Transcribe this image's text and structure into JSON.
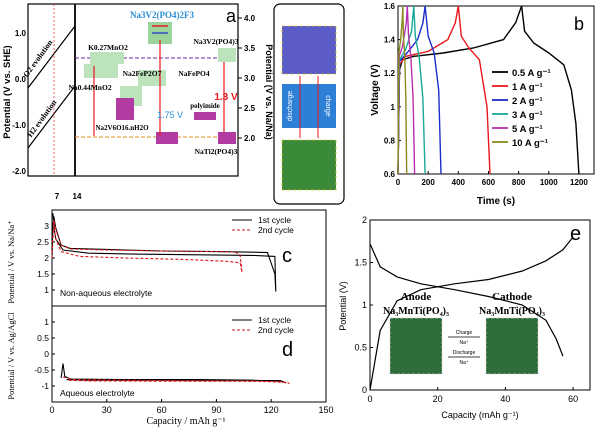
{
  "chart_data": [
    {
      "panel": "a",
      "type": "other",
      "left_axis": {
        "label": "Potential (V vs. SHE)",
        "ticks": [
          "1.0",
          "0.0",
          "-1.0",
          "-2.0"
        ]
      },
      "right_axis": {
        "label": "Potential (V vs. Na/Na)",
        "ticks": [
          "4.0",
          "3.5",
          "3.0",
          "2.5",
          "2.0"
        ]
      },
      "x_ticks": [
        "7",
        "14"
      ],
      "regions": [
        "O2 evolution",
        "H2 evolution"
      ],
      "materials": [
        {
          "label": "Na3V2(PO4)2F3",
          "color": "#9bd49b"
        },
        {
          "label": "K0.27MnO2",
          "color": "#bde3bd"
        },
        {
          "label": "Na3V2(PO4)3",
          "color": "#bde3bd"
        },
        {
          "label": "Na0.44MnO2",
          "color": "#bde3bd"
        },
        {
          "label": "Na2FeP2O7",
          "color": "#bde3bd"
        },
        {
          "label": "NaFePO4",
          "color": "#bde3bd"
        },
        {
          "label": "Na2V6O16.nH2O",
          "color": "#b23aa0"
        },
        {
          "label": "polyimide",
          "color": "#b23aa0"
        },
        {
          "label": "NaTi2(PO4)3",
          "color": "#b23aa0"
        }
      ],
      "voltage_labels": [
        "1.75 V",
        "1.3 V"
      ],
      "inset_labels": [
        "discharge",
        "charge"
      ]
    },
    {
      "panel": "b",
      "type": "line",
      "xlabel": "Time (s)",
      "ylabel": "Voltage (V)",
      "xlim": [
        0,
        1300
      ],
      "ylim": [
        0.6,
        1.6
      ],
      "xticks": [
        0,
        200,
        400,
        600,
        800,
        1000,
        1200
      ],
      "yticks": [
        0.6,
        0.8,
        1.0,
        1.2,
        1.4,
        1.6
      ],
      "series": [
        {
          "name": "0.5 A g⁻¹",
          "color": "#000000",
          "x": [
            0,
            10,
            30,
            100,
            300,
            500,
            700,
            780,
            820,
            840,
            900,
            1000,
            1100,
            1150,
            1180,
            1200
          ],
          "y": [
            0.6,
            1.22,
            1.28,
            1.3,
            1.32,
            1.35,
            1.4,
            1.5,
            1.6,
            1.45,
            1.38,
            1.32,
            1.25,
            1.1,
            0.9,
            0.6
          ]
        },
        {
          "name": "1 A g⁻¹",
          "color": "#e8171d",
          "x": [
            0,
            10,
            50,
            200,
            330,
            380,
            400,
            420,
            470,
            540,
            590,
            610
          ],
          "y": [
            0.6,
            1.25,
            1.3,
            1.33,
            1.4,
            1.5,
            1.6,
            1.42,
            1.35,
            1.28,
            1.0,
            0.6
          ]
        },
        {
          "name": "2 A g⁻¹",
          "color": "#1b2ec9",
          "x": [
            0,
            10,
            60,
            130,
            165,
            180,
            200,
            240,
            270,
            285
          ],
          "y": [
            0.6,
            1.27,
            1.32,
            1.4,
            1.5,
            1.6,
            1.42,
            1.32,
            1.1,
            0.6
          ]
        },
        {
          "name": "3 A g⁻¹",
          "color": "#17a89a",
          "x": [
            0,
            10,
            50,
            90,
            105,
            115,
            140,
            165,
            180
          ],
          "y": [
            0.6,
            1.28,
            1.34,
            1.45,
            1.6,
            1.42,
            1.3,
            1.05,
            0.6
          ]
        },
        {
          "name": "5 A g⁻¹",
          "color": "#b82fb0",
          "x": [
            0,
            8,
            30,
            55,
            62,
            70,
            85,
            100,
            110
          ],
          "y": [
            0.6,
            1.3,
            1.36,
            1.5,
            1.6,
            1.42,
            1.3,
            1.05,
            0.6
          ]
        },
        {
          "name": "10 A g⁻¹",
          "color": "#8a8a1e",
          "x": [
            0,
            5,
            18,
            28,
            32,
            36,
            45,
            52,
            58
          ],
          "y": [
            0.6,
            1.32,
            1.4,
            1.52,
            1.6,
            1.42,
            1.3,
            1.05,
            0.6
          ]
        }
      ]
    },
    {
      "panel": "c",
      "type": "line",
      "xlabel": "Capacity / mAh g⁻¹",
      "ylabel": "Potential / V vs. Na/Na⁺",
      "xlim": [
        0,
        150
      ],
      "ylim": [
        0.5,
        3.5
      ],
      "yticks": [
        1.0,
        1.5,
        2.0,
        2.5,
        3.0
      ],
      "annotation": "Non-aqueous electrolyte",
      "series": [
        {
          "name": "1st cycle",
          "color": "#000000",
          "dash": false,
          "x": [
            0,
            0.5,
            1,
            2,
            5,
            10,
            30,
            60,
            90,
            110,
            118,
            122,
            122.5,
            122,
            110,
            80,
            50,
            20,
            6,
            2,
            1,
            0.5
          ],
          "y": [
            2.0,
            3.0,
            3.3,
            2.95,
            2.4,
            2.3,
            2.27,
            2.22,
            2.2,
            2.18,
            2.17,
            1.5,
            0.95,
            2.05,
            2.08,
            2.1,
            2.12,
            2.15,
            2.25,
            2.6,
            3.0,
            3.4
          ]
        },
        {
          "name": "2nd cycle",
          "color": "#d7191c",
          "dash": true,
          "x": [
            0,
            1,
            2,
            5,
            10,
            30,
            60,
            90,
            100,
            103,
            104,
            103,
            95,
            70,
            40,
            15,
            5,
            2,
            1
          ],
          "y": [
            2.0,
            3.2,
            2.9,
            2.4,
            2.28,
            2.25,
            2.22,
            2.2,
            2.19,
            2.1,
            1.55,
            1.85,
            1.9,
            1.96,
            2.0,
            2.05,
            2.2,
            2.6,
            3.1
          ]
        }
      ]
    },
    {
      "panel": "d",
      "type": "line",
      "xlabel": "Capacity / mAh g⁻¹",
      "ylabel": "Potential / V vs. Ag/AgCl",
      "xlim": [
        0,
        150
      ],
      "ylim": [
        -1.5,
        1.5
      ],
      "xticks": [
        0,
        30,
        60,
        90,
        120,
        150
      ],
      "yticks": [
        -1.0,
        -0.5,
        0.0,
        0.5,
        1.0
      ],
      "annotation": "Aqueous electrolyte",
      "series": [
        {
          "name": "1st cycle",
          "color": "#000000",
          "dash": false,
          "x": [
            5,
            6,
            7,
            10,
            40,
            80,
            110,
            125,
            128,
            125,
            100,
            60,
            20,
            8
          ],
          "y": [
            -0.75,
            -0.3,
            -0.7,
            -0.78,
            -0.8,
            -0.8,
            -0.82,
            -0.85,
            -0.9,
            -0.83,
            -0.82,
            -0.82,
            -0.82,
            -0.8
          ]
        },
        {
          "name": "2nd cycle",
          "color": "#d7191c",
          "dash": true,
          "x": [
            6,
            8,
            12,
            40,
            80,
            110,
            126,
            130,
            126,
            100,
            60,
            20,
            8
          ],
          "y": [
            -0.72,
            -0.75,
            -0.8,
            -0.82,
            -0.84,
            -0.85,
            -0.88,
            -0.92,
            -0.86,
            -0.85,
            -0.85,
            -0.84,
            -0.82
          ]
        }
      ]
    },
    {
      "panel": "e",
      "type": "line",
      "xlabel": "Capacity (mAh g⁻¹)",
      "ylabel": "Potential (V)",
      "xlim": [
        0,
        65
      ],
      "ylim": [
        0,
        2.0
      ],
      "xticks": [
        0,
        20,
        40,
        60
      ],
      "yticks": [
        0.0,
        0.5,
        1.0,
        1.5,
        2.0
      ],
      "series": [
        {
          "name": "",
          "color": "#000000",
          "x": [
            0,
            3,
            8,
            15,
            25,
            35,
            45,
            52,
            57,
            60
          ],
          "y": [
            0.0,
            0.7,
            1.05,
            1.18,
            1.25,
            1.3,
            1.4,
            1.52,
            1.65,
            1.8
          ]
        },
        {
          "name": "",
          "color": "#000000",
          "x": [
            0,
            3,
            8,
            15,
            25,
            35,
            45,
            52,
            55,
            57
          ],
          "y": [
            1.72,
            1.45,
            1.33,
            1.25,
            1.18,
            1.1,
            1.0,
            0.82,
            0.6,
            0.4
          ]
        }
      ],
      "annotations": {
        "anode": "Anode",
        "cathode": "Cathode",
        "anode_formula": "Na₃MnTi(PO₄)₃",
        "cathode_formula": "Na₃MnTi(PO₄)₃",
        "charge": "Charge",
        "discharge": "Discharge",
        "na_plus": "Na⁺"
      }
    }
  ],
  "panel_labels": {
    "a": "a",
    "b": "b",
    "c": "c",
    "d": "d",
    "e": "e"
  },
  "colors": {
    "black": "#000000",
    "red": "#d7191c",
    "purple": "#b23aa0",
    "green": "#9bd49b",
    "lightgreen": "#bde3bd",
    "blue_title": "#2a8fd6"
  }
}
